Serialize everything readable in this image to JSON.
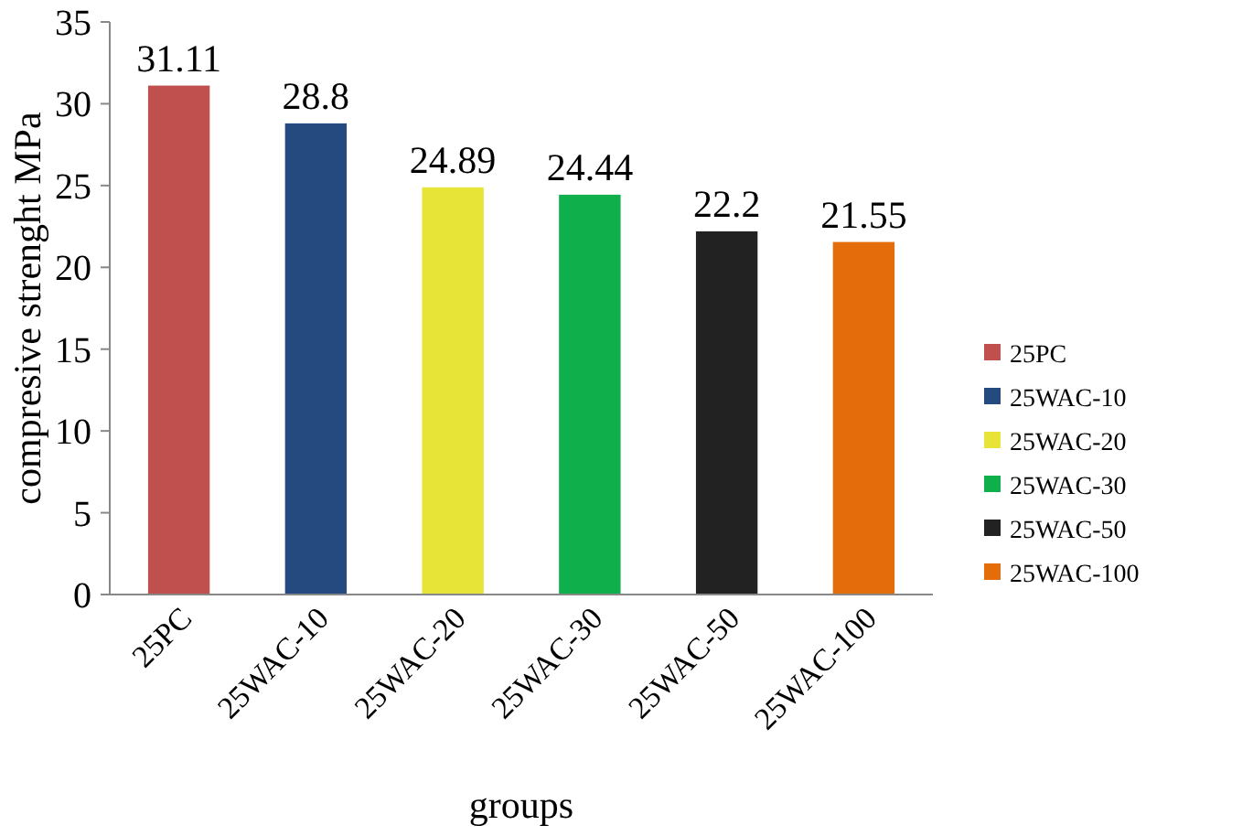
{
  "chart_data": {
    "type": "bar",
    "xlabel": "groups",
    "ylabel": "compresive strenght MPa",
    "stacked": true,
    "categories": [
      "25PC",
      "25WAC-10",
      "25WAC-20",
      "25WAC-30",
      "25WAC-50",
      "25WAC-100"
    ],
    "series": [
      {
        "name": "25PC",
        "color": "#c0504d",
        "values": [
          31.11,
          null,
          null,
          null,
          null,
          null
        ]
      },
      {
        "name": "25WAC-10",
        "color": "#254a80",
        "values": [
          null,
          28.8,
          null,
          null,
          null,
          null
        ]
      },
      {
        "name": "25WAC-20",
        "color": "#e8e337",
        "values": [
          null,
          null,
          24.89,
          null,
          null,
          null
        ]
      },
      {
        "name": "25WAC-30",
        "color": "#0fb04c",
        "values": [
          null,
          null,
          null,
          24.44,
          null,
          null
        ]
      },
      {
        "name": "25WAC-50",
        "color": "#222222",
        "values": [
          null,
          null,
          null,
          null,
          22.2,
          null
        ]
      },
      {
        "name": "25WAC-100",
        "color": "#e46c0a",
        "values": [
          null,
          null,
          null,
          null,
          null,
          21.55
        ]
      }
    ],
    "ylim": [
      0,
      35
    ],
    "yticks": [
      0,
      5,
      10,
      15,
      20,
      25,
      30,
      35
    ],
    "data_labels": true,
    "legend": "right",
    "grid": false
  }
}
